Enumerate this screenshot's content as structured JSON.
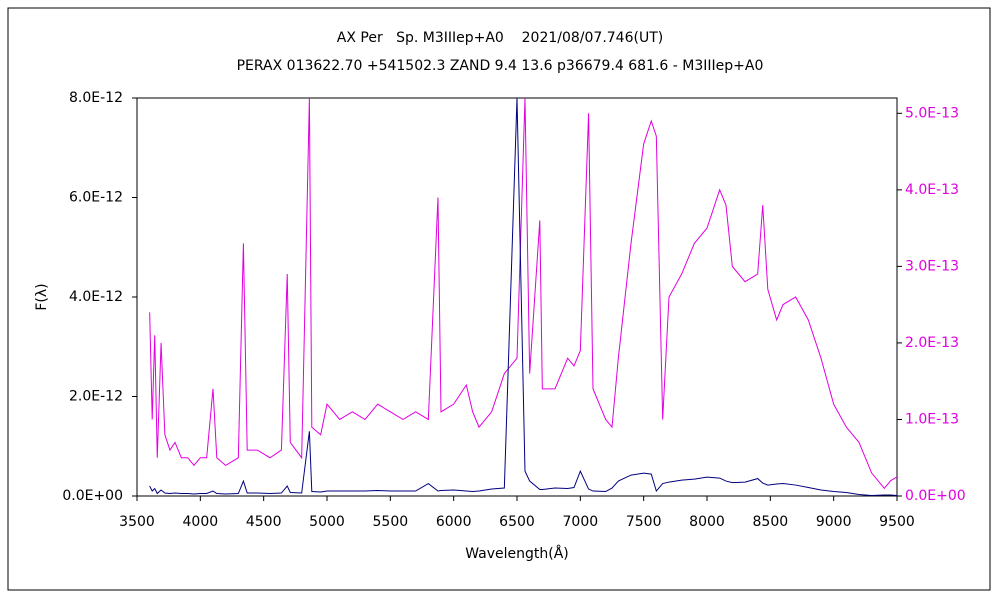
{
  "chart_data": {
    "type": "line",
    "title": "AX Per   Sp. M3IIIep+A0    2021/08/07.746(UT)",
    "subtitle": "PERAX 013622.70 +541502.3 ZAND 9.4 13.6 p36679.4 681.6 - M3IIIep+A0",
    "x_label": "Wavelength(Å)",
    "y_label": "F(λ)",
    "x": [
      3600,
      3620,
      3640,
      3660,
      3690,
      3720,
      3760,
      3800,
      3850,
      3900,
      3950,
      4000,
      4050,
      4100,
      4130,
      4200,
      4300,
      4340,
      4370,
      4450,
      4550,
      4640,
      4686,
      4710,
      4800,
      4861,
      4880,
      4950,
      5000,
      5100,
      5200,
      5300,
      5400,
      5500,
      5600,
      5700,
      5800,
      5876,
      5900,
      6000,
      6100,
      6150,
      6200,
      6300,
      6400,
      6500,
      6563,
      6600,
      6680,
      6700,
      6800,
      6900,
      6950,
      7000,
      7065,
      7100,
      7200,
      7250,
      7300,
      7400,
      7500,
      7560,
      7600,
      7650,
      7700,
      7800,
      7900,
      8000,
      8100,
      8150,
      8200,
      8300,
      8400,
      8440,
      8480,
      8550,
      8600,
      8700,
      8800,
      8900,
      9000,
      9100,
      9200,
      9300,
      9400,
      9450,
      9500
    ],
    "xlim": [
      3500,
      9500
    ],
    "xticks": [
      3500,
      4000,
      4500,
      5000,
      5500,
      6000,
      6500,
      7000,
      7500,
      8000,
      8500,
      9000,
      9500
    ],
    "ylim": [
      0,
      8e-12
    ],
    "yticks": [
      {
        "value": 0,
        "label": "0.0E+00"
      },
      {
        "value": 2e-12,
        "label": "2.0E-12"
      },
      {
        "value": 4e-12,
        "label": "4.0E-12"
      },
      {
        "value": 6e-12,
        "label": "6.0E-12"
      },
      {
        "value": 8e-12,
        "label": "8.0E-12"
      }
    ],
    "y2lim": [
      0,
      5.2e-13
    ],
    "y2ticks": [
      {
        "value": 0,
        "label": "0.0E+00"
      },
      {
        "value": 1e-13,
        "label": "1.0E-13"
      },
      {
        "value": 2e-13,
        "label": "2.0E-13"
      },
      {
        "value": 3e-13,
        "label": "3.0E-13"
      },
      {
        "value": 4e-13,
        "label": "4.0E-13"
      },
      {
        "value": 5e-13,
        "label": "5.0E-13"
      }
    ],
    "series": [
      {
        "color": "#e000e0",
        "axis": "y2",
        "values": [
          2.4e-13,
          1e-13,
          2.1e-13,
          5e-14,
          2e-13,
          8e-14,
          6e-14,
          7e-14,
          5e-14,
          5e-14,
          4e-14,
          5e-14,
          5e-14,
          1.4e-13,
          5e-14,
          4e-14,
          5e-14,
          3.3e-13,
          6e-14,
          6e-14,
          5e-14,
          6e-14,
          2.9e-13,
          7e-14,
          5e-14,
          5.2e-13,
          9e-14,
          8e-14,
          1.2e-13,
          1e-13,
          1.1e-13,
          1e-13,
          1.2e-13,
          1.1e-13,
          1e-13,
          1.1e-13,
          1e-13,
          3.9e-13,
          1.1e-13,
          1.2e-13,
          1.45e-13,
          1.1e-13,
          9e-14,
          1.1e-13,
          1.6e-13,
          1.8e-13,
          5.2e-13,
          1.6e-13,
          3.6e-13,
          1.4e-13,
          1.4e-13,
          1.8e-13,
          1.7e-13,
          1.9e-13,
          5e-13,
          1.4e-13,
          1e-13,
          9e-14,
          1.8e-13,
          3.3e-13,
          4.6e-13,
          4.9e-13,
          4.7e-13,
          1e-13,
          2.6e-13,
          2.9e-13,
          3.3e-13,
          3.5e-13,
          4e-13,
          3.8e-13,
          3e-13,
          2.8e-13,
          2.9e-13,
          3.8e-13,
          2.7e-13,
          2.3e-13,
          2.5e-13,
          2.6e-13,
          2.3e-13,
          1.8e-13,
          1.2e-13,
          9e-14,
          7e-14,
          3e-14,
          1e-14,
          2e-14,
          2.5e-14
        ]
      },
      {
        "color": "#000080",
        "axis": "y",
        "values": [
          2e-13,
          1e-13,
          1.5e-13,
          5e-14,
          1.2e-13,
          6e-14,
          5e-14,
          6e-14,
          5e-14,
          5e-14,
          4e-14,
          5e-14,
          5e-14,
          1e-13,
          5e-14,
          4e-14,
          5e-14,
          3e-13,
          6e-14,
          6e-14,
          5e-14,
          6e-14,
          2e-13,
          7e-14,
          6e-14,
          1.3e-12,
          9e-14,
          8e-14,
          1e-13,
          1e-13,
          1e-13,
          1e-13,
          1.1e-13,
          1e-13,
          1e-13,
          1e-13,
          2.5e-13,
          1e-13,
          1.1e-13,
          1.2e-13,
          1e-13,
          9e-14,
          1e-13,
          1.4e-13,
          1.6e-13,
          8e-12,
          5e-13,
          3e-13,
          1.3e-13,
          1.3e-13,
          1.6e-13,
          1.5e-13,
          1.7e-13,
          5e-13,
          1.4e-13,
          1e-13,
          9e-14,
          1.6e-13,
          3e-13,
          4.2e-13,
          4.6e-13,
          4.4e-13,
          1e-13,
          2.5e-13,
          2.8e-13,
          3.2e-13,
          3.4e-13,
          3.8e-13,
          3.6e-13,
          3e-13,
          2.7e-13,
          2.8e-13,
          3.5e-13,
          2.6e-13,
          2.2e-13,
          2.4e-13,
          2.5e-13,
          2.2e-13,
          1.7e-13,
          1.2e-13,
          9e-14,
          7e-14,
          3e-14,
          1e-14,
          2e-14,
          2e-14,
          1e-14
        ]
      }
    ]
  }
}
